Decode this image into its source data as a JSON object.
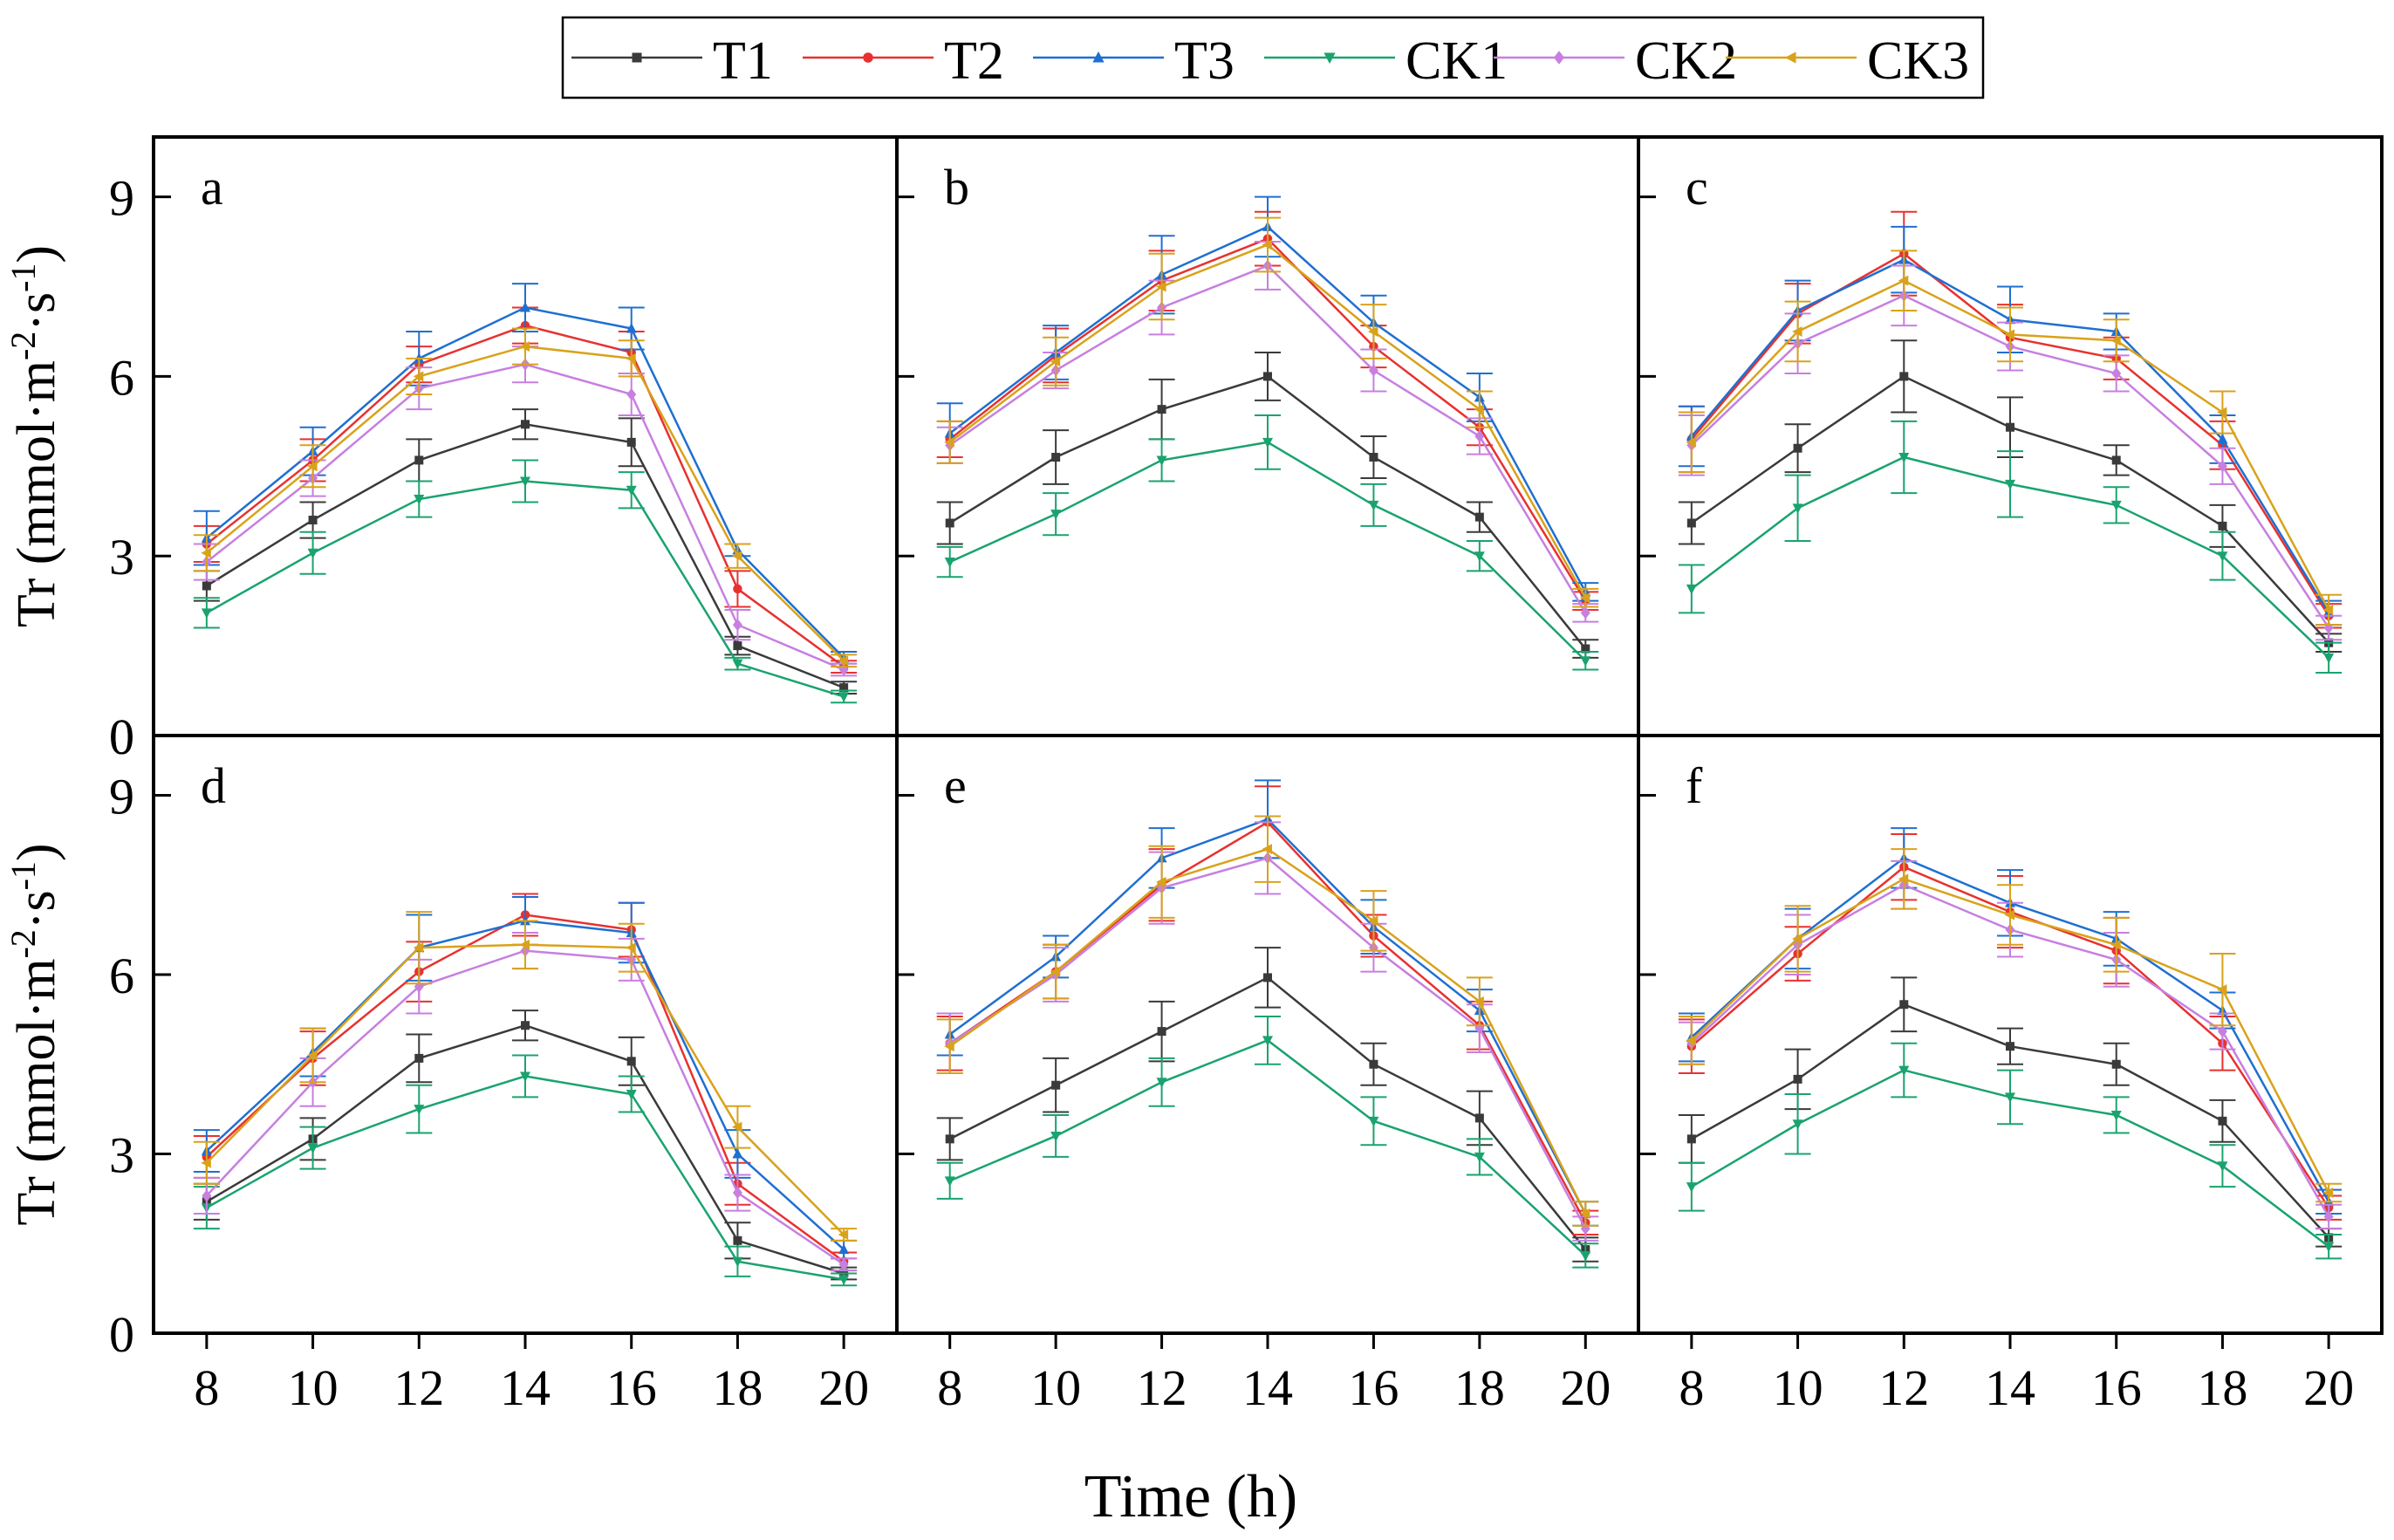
{
  "figure": {
    "xlabel": "Time (h)",
    "ylabel_main": "Tr (mmol·m",
    "ylabel_sup1": "-2",
    "ylabel_mid": "·s",
    "ylabel_sup2": "-1",
    "ylabel_end": ")"
  },
  "legend": [
    {
      "name": "T1",
      "color": "#3a3a3a",
      "marker": "square"
    },
    {
      "name": "T2",
      "color": "#e8312f",
      "marker": "circle"
    },
    {
      "name": "T3",
      "color": "#1f6fd1",
      "marker": "triangle-up"
    },
    {
      "name": "CK1",
      "color": "#1aa36e",
      "marker": "triangle-down"
    },
    {
      "name": "CK2",
      "color": "#c77fe0",
      "marker": "diamond"
    },
    {
      "name": "CK3",
      "color": "#d9a21b",
      "marker": "triangle-left"
    }
  ],
  "chart_data": [
    {
      "type": "line",
      "panel": "a",
      "x": [
        8,
        10,
        12,
        14,
        16,
        18,
        20
      ],
      "xlim": [
        7,
        21
      ],
      "ylim": [
        0,
        10
      ],
      "yticks": [
        0,
        3,
        6,
        9
      ],
      "xticks": [
        8,
        10,
        12,
        14,
        16,
        18,
        20
      ],
      "series": [
        {
          "name": "T1",
          "values": [
            2.5,
            3.6,
            4.6,
            5.2,
            4.9,
            1.5,
            0.8
          ],
          "errors": [
            0.25,
            0.3,
            0.35,
            0.25,
            0.4,
            0.15,
            0.1
          ]
        },
        {
          "name": "T2",
          "values": [
            3.2,
            4.6,
            6.2,
            6.85,
            6.4,
            2.45,
            1.15
          ],
          "errors": [
            0.3,
            0.35,
            0.3,
            0.3,
            0.35,
            0.3,
            0.1
          ]
        },
        {
          "name": "T3",
          "values": [
            3.3,
            4.75,
            6.3,
            7.15,
            6.8,
            3.1,
            1.3
          ],
          "errors": [
            0.45,
            0.4,
            0.45,
            0.4,
            0.35,
            0.1,
            0.1
          ]
        },
        {
          "name": "CK1",
          "values": [
            2.05,
            3.05,
            3.95,
            4.25,
            4.1,
            1.2,
            0.65
          ],
          "errors": [
            0.25,
            0.35,
            0.3,
            0.35,
            0.3,
            0.1,
            0.1
          ]
        },
        {
          "name": "CK2",
          "values": [
            2.9,
            4.3,
            5.8,
            6.2,
            5.7,
            1.85,
            1.1
          ],
          "errors": [
            0.3,
            0.3,
            0.35,
            0.3,
            0.35,
            0.25,
            0.1
          ]
        },
        {
          "name": "CK3",
          "values": [
            3.05,
            4.5,
            6.0,
            6.5,
            6.3,
            3.0,
            1.25
          ],
          "errors": [
            0.3,
            0.35,
            0.3,
            0.3,
            0.3,
            0.2,
            0.1
          ]
        }
      ]
    },
    {
      "type": "line",
      "panel": "b",
      "x": [
        8,
        10,
        12,
        14,
        16,
        18,
        20
      ],
      "xlim": [
        7,
        21
      ],
      "ylim": [
        0,
        10
      ],
      "yticks": [
        0,
        3,
        6,
        9
      ],
      "xticks": [
        8,
        10,
        12,
        14,
        16,
        18,
        20
      ],
      "series": [
        {
          "name": "T1",
          "values": [
            3.55,
            4.65,
            5.45,
            6.0,
            4.65,
            3.65,
            1.45
          ],
          "errors": [
            0.35,
            0.45,
            0.5,
            0.4,
            0.35,
            0.25,
            0.15
          ]
        },
        {
          "name": "T2",
          "values": [
            4.95,
            6.35,
            7.6,
            8.3,
            6.5,
            5.15,
            2.25
          ],
          "errors": [
            0.3,
            0.45,
            0.5,
            0.45,
            0.35,
            0.3,
            0.15
          ]
        },
        {
          "name": "T3",
          "values": [
            5.05,
            6.4,
            7.7,
            8.5,
            6.9,
            5.65,
            2.4
          ],
          "errors": [
            0.5,
            0.45,
            0.65,
            0.5,
            0.45,
            0.4,
            0.15
          ]
        },
        {
          "name": "CK1",
          "values": [
            2.9,
            3.7,
            4.6,
            4.9,
            3.85,
            3.0,
            1.25
          ],
          "errors": [
            0.25,
            0.35,
            0.35,
            0.45,
            0.35,
            0.25,
            0.15
          ]
        },
        {
          "name": "CK2",
          "values": [
            4.85,
            6.1,
            7.15,
            7.85,
            6.1,
            5.0,
            2.05
          ],
          "errors": [
            0.3,
            0.3,
            0.45,
            0.4,
            0.35,
            0.3,
            0.15
          ]
        },
        {
          "name": "CK3",
          "values": [
            4.9,
            6.25,
            7.5,
            8.2,
            6.75,
            5.45,
            2.3
          ],
          "errors": [
            0.35,
            0.4,
            0.55,
            0.45,
            0.45,
            0.3,
            0.15
          ]
        }
      ]
    },
    {
      "type": "line",
      "panel": "c",
      "x": [
        8,
        10,
        12,
        14,
        16,
        18,
        20
      ],
      "xlim": [
        7,
        21
      ],
      "ylim": [
        0,
        10
      ],
      "yticks": [
        0,
        3,
        6,
        9
      ],
      "xticks": [
        8,
        10,
        12,
        14,
        16,
        18,
        20
      ],
      "series": [
        {
          "name": "T1",
          "values": [
            3.55,
            4.8,
            6.0,
            5.15,
            4.6,
            3.5,
            1.55
          ],
          "errors": [
            0.35,
            0.4,
            0.6,
            0.5,
            0.25,
            0.35,
            0.15
          ]
        },
        {
          "name": "T2",
          "values": [
            4.95,
            7.05,
            8.05,
            6.65,
            6.3,
            4.85,
            2.0
          ],
          "errors": [
            0.55,
            0.5,
            0.7,
            0.55,
            0.35,
            0.4,
            0.2
          ]
        },
        {
          "name": "T3",
          "values": [
            5.0,
            7.1,
            7.95,
            6.95,
            6.75,
            4.95,
            2.05
          ],
          "errors": [
            0.5,
            0.5,
            0.55,
            0.55,
            0.3,
            0.4,
            0.2
          ]
        },
        {
          "name": "CK1",
          "values": [
            2.45,
            3.8,
            4.65,
            4.2,
            3.85,
            3.0,
            1.3
          ],
          "errors": [
            0.4,
            0.55,
            0.6,
            0.55,
            0.3,
            0.4,
            0.25
          ]
        },
        {
          "name": "CK2",
          "values": [
            4.85,
            6.55,
            7.35,
            6.5,
            6.05,
            4.5,
            1.8
          ],
          "errors": [
            0.5,
            0.5,
            0.5,
            0.4,
            0.3,
            0.3,
            0.2
          ]
        },
        {
          "name": "CK3",
          "values": [
            4.9,
            6.75,
            7.6,
            6.7,
            6.6,
            5.4,
            2.1
          ],
          "errors": [
            0.5,
            0.5,
            0.5,
            0.45,
            0.35,
            0.35,
            0.25
          ]
        }
      ]
    },
    {
      "type": "line",
      "panel": "d",
      "x": [
        8,
        10,
        12,
        14,
        16,
        18,
        20
      ],
      "xlim": [
        7,
        21
      ],
      "ylim": [
        0,
        10
      ],
      "yticks": [
        0,
        3,
        6,
        9
      ],
      "xticks": [
        8,
        10,
        12,
        14,
        16,
        18,
        20
      ],
      "series": [
        {
          "name": "T1",
          "values": [
            2.2,
            3.25,
            4.6,
            5.15,
            4.55,
            1.55,
            1.0
          ],
          "errors": [
            0.3,
            0.35,
            0.4,
            0.25,
            0.4,
            0.3,
            0.1
          ]
        },
        {
          "name": "T2",
          "values": [
            2.95,
            4.6,
            6.05,
            7.0,
            6.75,
            2.5,
            1.2
          ],
          "errors": [
            0.35,
            0.45,
            0.5,
            0.35,
            0.45,
            0.35,
            0.15
          ]
        },
        {
          "name": "T3",
          "values": [
            3.05,
            4.7,
            6.45,
            6.9,
            6.7,
            3.0,
            1.4
          ],
          "errors": [
            0.35,
            0.4,
            0.55,
            0.4,
            0.5,
            0.4,
            0.15
          ]
        },
        {
          "name": "CK1",
          "values": [
            2.1,
            3.1,
            3.75,
            4.3,
            4.0,
            1.2,
            0.9
          ],
          "errors": [
            0.35,
            0.35,
            0.4,
            0.35,
            0.3,
            0.25,
            0.1
          ]
        },
        {
          "name": "CK2",
          "values": [
            2.3,
            4.2,
            5.8,
            6.4,
            6.25,
            2.35,
            1.15
          ],
          "errors": [
            0.3,
            0.4,
            0.45,
            0.3,
            0.35,
            0.3,
            0.1
          ]
        },
        {
          "name": "CK3",
          "values": [
            2.85,
            4.65,
            6.45,
            6.5,
            6.45,
            3.45,
            1.65
          ],
          "errors": [
            0.35,
            0.45,
            0.6,
            0.4,
            0.4,
            0.35,
            0.1
          ]
        }
      ]
    },
    {
      "type": "line",
      "panel": "e",
      "x": [
        8,
        10,
        12,
        14,
        16,
        18,
        20
      ],
      "xlim": [
        7,
        21
      ],
      "ylim": [
        0,
        10
      ],
      "yticks": [
        0,
        3,
        6,
        9
      ],
      "xticks": [
        8,
        10,
        12,
        14,
        16,
        18,
        20
      ],
      "series": [
        {
          "name": "T1",
          "values": [
            3.25,
            4.15,
            5.05,
            5.95,
            4.5,
            3.6,
            1.4
          ],
          "errors": [
            0.35,
            0.45,
            0.5,
            0.5,
            0.35,
            0.45,
            0.2
          ]
        },
        {
          "name": "T2",
          "values": [
            4.85,
            6.05,
            7.5,
            8.55,
            6.65,
            5.15,
            1.85
          ],
          "errors": [
            0.45,
            0.45,
            0.6,
            0.6,
            0.35,
            0.4,
            0.2
          ]
        },
        {
          "name": "T3",
          "values": [
            5.0,
            6.3,
            7.95,
            8.6,
            6.8,
            5.4,
            2.0
          ],
          "errors": [
            0.35,
            0.35,
            0.5,
            0.65,
            0.45,
            0.35,
            0.2
          ]
        },
        {
          "name": "CK1",
          "values": [
            2.55,
            3.3,
            4.2,
            4.9,
            3.55,
            2.95,
            1.3
          ],
          "errors": [
            0.3,
            0.35,
            0.4,
            0.4,
            0.4,
            0.3,
            0.2
          ]
        },
        {
          "name": "CK2",
          "values": [
            4.85,
            6.0,
            7.45,
            7.95,
            6.45,
            5.1,
            1.75
          ],
          "errors": [
            0.5,
            0.45,
            0.6,
            0.6,
            0.4,
            0.4,
            0.2
          ]
        },
        {
          "name": "CK3",
          "values": [
            4.8,
            6.05,
            7.55,
            8.1,
            6.9,
            5.55,
            2.0
          ],
          "errors": [
            0.45,
            0.45,
            0.6,
            0.55,
            0.5,
            0.4,
            0.2
          ]
        }
      ]
    },
    {
      "type": "line",
      "panel": "f",
      "x": [
        8,
        10,
        12,
        14,
        16,
        18,
        20
      ],
      "xlim": [
        7,
        21
      ],
      "ylim": [
        0,
        10
      ],
      "yticks": [
        0,
        3,
        6,
        9
      ],
      "xticks": [
        8,
        10,
        12,
        14,
        16,
        18,
        20
      ],
      "series": [
        {
          "name": "T1",
          "values": [
            3.25,
            4.25,
            5.5,
            4.8,
            4.5,
            3.55,
            1.6
          ],
          "errors": [
            0.4,
            0.5,
            0.45,
            0.3,
            0.35,
            0.35,
            0.15
          ]
        },
        {
          "name": "T2",
          "values": [
            4.8,
            6.35,
            7.8,
            7.05,
            6.4,
            4.85,
            2.1
          ],
          "errors": [
            0.45,
            0.45,
            0.55,
            0.6,
            0.55,
            0.45,
            0.2
          ]
        },
        {
          "name": "T3",
          "values": [
            4.95,
            6.6,
            7.95,
            7.2,
            6.6,
            5.4,
            2.2
          ],
          "errors": [
            0.4,
            0.5,
            0.5,
            0.55,
            0.45,
            0.3,
            0.2
          ]
        },
        {
          "name": "CK1",
          "values": [
            2.45,
            3.5,
            4.4,
            3.95,
            3.65,
            2.8,
            1.45
          ],
          "errors": [
            0.4,
            0.5,
            0.45,
            0.45,
            0.3,
            0.35,
            0.2
          ]
        },
        {
          "name": "CK2",
          "values": [
            4.85,
            6.5,
            7.5,
            6.75,
            6.25,
            5.05,
            1.95
          ],
          "errors": [
            0.35,
            0.5,
            0.4,
            0.45,
            0.45,
            0.3,
            0.2
          ]
        },
        {
          "name": "CK3",
          "values": [
            4.9,
            6.6,
            7.6,
            7.0,
            6.5,
            5.75,
            2.35
          ],
          "errors": [
            0.4,
            0.55,
            0.5,
            0.5,
            0.45,
            0.6,
            0.15
          ]
        }
      ]
    }
  ]
}
